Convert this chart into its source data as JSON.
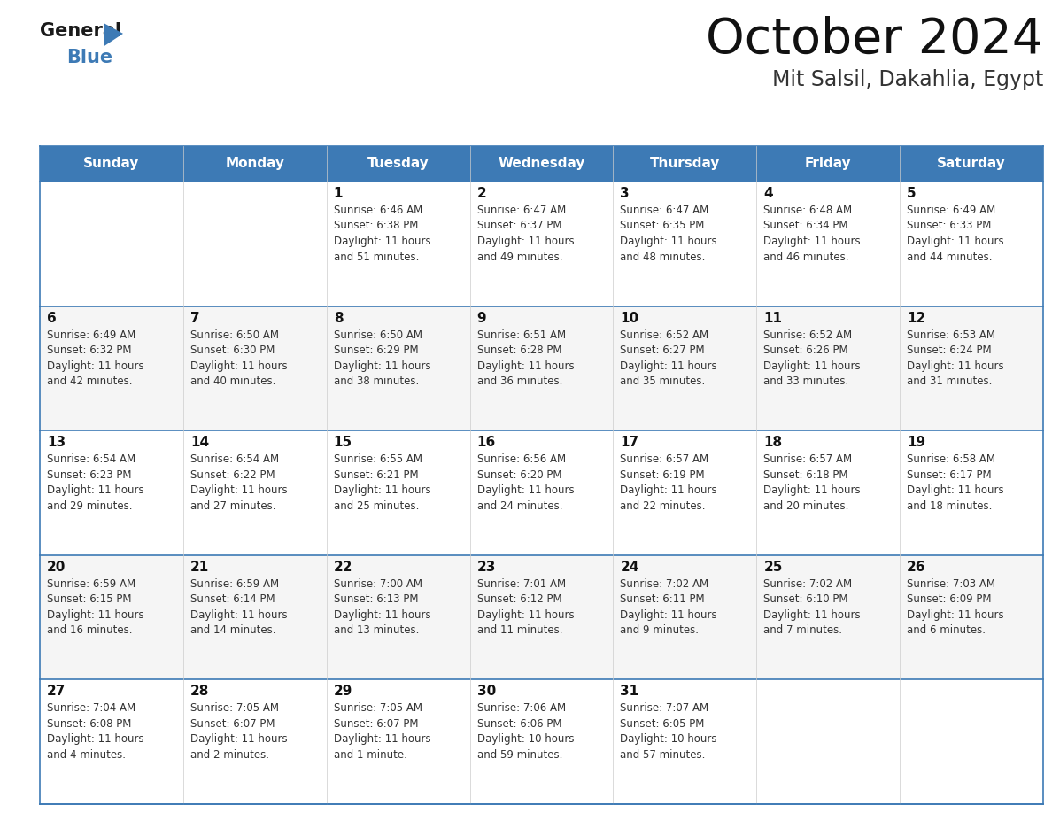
{
  "title": "October 2024",
  "subtitle": "Mit Salsil, Dakahlia, Egypt",
  "header_color": "#3d7ab5",
  "header_text_color": "#ffffff",
  "border_color": "#3d7ab5",
  "text_color": "#333333",
  "days_of_week": [
    "Sunday",
    "Monday",
    "Tuesday",
    "Wednesday",
    "Thursday",
    "Friday",
    "Saturday"
  ],
  "calendar_data": [
    [
      {
        "day": "",
        "info": ""
      },
      {
        "day": "",
        "info": ""
      },
      {
        "day": "1",
        "info": "Sunrise: 6:46 AM\nSunset: 6:38 PM\nDaylight: 11 hours\nand 51 minutes."
      },
      {
        "day": "2",
        "info": "Sunrise: 6:47 AM\nSunset: 6:37 PM\nDaylight: 11 hours\nand 49 minutes."
      },
      {
        "day": "3",
        "info": "Sunrise: 6:47 AM\nSunset: 6:35 PM\nDaylight: 11 hours\nand 48 minutes."
      },
      {
        "day": "4",
        "info": "Sunrise: 6:48 AM\nSunset: 6:34 PM\nDaylight: 11 hours\nand 46 minutes."
      },
      {
        "day": "5",
        "info": "Sunrise: 6:49 AM\nSunset: 6:33 PM\nDaylight: 11 hours\nand 44 minutes."
      }
    ],
    [
      {
        "day": "6",
        "info": "Sunrise: 6:49 AM\nSunset: 6:32 PM\nDaylight: 11 hours\nand 42 minutes."
      },
      {
        "day": "7",
        "info": "Sunrise: 6:50 AM\nSunset: 6:30 PM\nDaylight: 11 hours\nand 40 minutes."
      },
      {
        "day": "8",
        "info": "Sunrise: 6:50 AM\nSunset: 6:29 PM\nDaylight: 11 hours\nand 38 minutes."
      },
      {
        "day": "9",
        "info": "Sunrise: 6:51 AM\nSunset: 6:28 PM\nDaylight: 11 hours\nand 36 minutes."
      },
      {
        "day": "10",
        "info": "Sunrise: 6:52 AM\nSunset: 6:27 PM\nDaylight: 11 hours\nand 35 minutes."
      },
      {
        "day": "11",
        "info": "Sunrise: 6:52 AM\nSunset: 6:26 PM\nDaylight: 11 hours\nand 33 minutes."
      },
      {
        "day": "12",
        "info": "Sunrise: 6:53 AM\nSunset: 6:24 PM\nDaylight: 11 hours\nand 31 minutes."
      }
    ],
    [
      {
        "day": "13",
        "info": "Sunrise: 6:54 AM\nSunset: 6:23 PM\nDaylight: 11 hours\nand 29 minutes."
      },
      {
        "day": "14",
        "info": "Sunrise: 6:54 AM\nSunset: 6:22 PM\nDaylight: 11 hours\nand 27 minutes."
      },
      {
        "day": "15",
        "info": "Sunrise: 6:55 AM\nSunset: 6:21 PM\nDaylight: 11 hours\nand 25 minutes."
      },
      {
        "day": "16",
        "info": "Sunrise: 6:56 AM\nSunset: 6:20 PM\nDaylight: 11 hours\nand 24 minutes."
      },
      {
        "day": "17",
        "info": "Sunrise: 6:57 AM\nSunset: 6:19 PM\nDaylight: 11 hours\nand 22 minutes."
      },
      {
        "day": "18",
        "info": "Sunrise: 6:57 AM\nSunset: 6:18 PM\nDaylight: 11 hours\nand 20 minutes."
      },
      {
        "day": "19",
        "info": "Sunrise: 6:58 AM\nSunset: 6:17 PM\nDaylight: 11 hours\nand 18 minutes."
      }
    ],
    [
      {
        "day": "20",
        "info": "Sunrise: 6:59 AM\nSunset: 6:15 PM\nDaylight: 11 hours\nand 16 minutes."
      },
      {
        "day": "21",
        "info": "Sunrise: 6:59 AM\nSunset: 6:14 PM\nDaylight: 11 hours\nand 14 minutes."
      },
      {
        "day": "22",
        "info": "Sunrise: 7:00 AM\nSunset: 6:13 PM\nDaylight: 11 hours\nand 13 minutes."
      },
      {
        "day": "23",
        "info": "Sunrise: 7:01 AM\nSunset: 6:12 PM\nDaylight: 11 hours\nand 11 minutes."
      },
      {
        "day": "24",
        "info": "Sunrise: 7:02 AM\nSunset: 6:11 PM\nDaylight: 11 hours\nand 9 minutes."
      },
      {
        "day": "25",
        "info": "Sunrise: 7:02 AM\nSunset: 6:10 PM\nDaylight: 11 hours\nand 7 minutes."
      },
      {
        "day": "26",
        "info": "Sunrise: 7:03 AM\nSunset: 6:09 PM\nDaylight: 11 hours\nand 6 minutes."
      }
    ],
    [
      {
        "day": "27",
        "info": "Sunrise: 7:04 AM\nSunset: 6:08 PM\nDaylight: 11 hours\nand 4 minutes."
      },
      {
        "day": "28",
        "info": "Sunrise: 7:05 AM\nSunset: 6:07 PM\nDaylight: 11 hours\nand 2 minutes."
      },
      {
        "day": "29",
        "info": "Sunrise: 7:05 AM\nSunset: 6:07 PM\nDaylight: 11 hours\nand 1 minute."
      },
      {
        "day": "30",
        "info": "Sunrise: 7:06 AM\nSunset: 6:06 PM\nDaylight: 10 hours\nand 59 minutes."
      },
      {
        "day": "31",
        "info": "Sunrise: 7:07 AM\nSunset: 6:05 PM\nDaylight: 10 hours\nand 57 minutes."
      },
      {
        "day": "",
        "info": ""
      },
      {
        "day": "",
        "info": ""
      }
    ]
  ],
  "logo_general_color": "#1a1a1a",
  "logo_blue_color": "#3d7ab5",
  "logo_triangle_color": "#3d7ab5",
  "title_fontsize": 40,
  "subtitle_fontsize": 17,
  "day_header_fontsize": 11,
  "day_num_fontsize": 11,
  "info_fontsize": 8.5
}
